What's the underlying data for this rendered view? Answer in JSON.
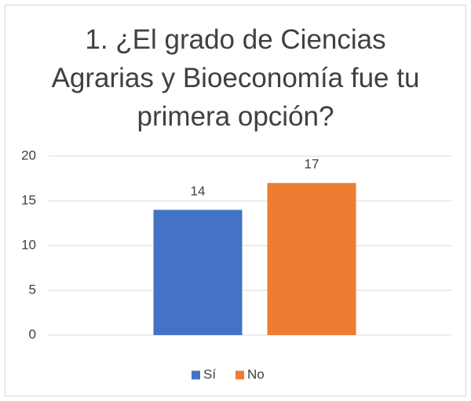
{
  "chart_data": {
    "type": "bar",
    "title": "1. ¿El grado de Ciencias Agrarias y Bioeconomía fue tu primera opción?",
    "categories": [
      null
    ],
    "series": [
      {
        "name": "Sí",
        "color": "#4472c4",
        "values": [
          14
        ]
      },
      {
        "name": "No",
        "color": "#ed7d31",
        "values": [
          17
        ]
      }
    ],
    "ylim": [
      0,
      20
    ],
    "yticks": [
      0,
      5,
      10,
      15,
      20
    ],
    "grid": true,
    "legend": "bottom"
  }
}
